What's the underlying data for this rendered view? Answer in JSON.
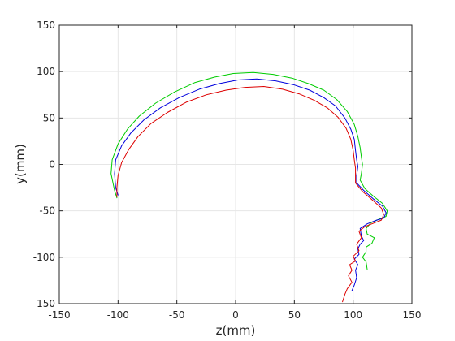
{
  "chart_data": {
    "type": "line",
    "title": "",
    "xlabel": "z(mm)",
    "ylabel": "y(mm)",
    "xlim": [
      -150,
      150
    ],
    "ylim": [
      -150,
      150
    ],
    "xticks": [
      -150,
      -100,
      -50,
      0,
      50,
      100,
      150
    ],
    "yticks": [
      -150,
      -100,
      -50,
      0,
      50,
      100,
      150
    ],
    "grid": true,
    "box": true,
    "colors": {
      "axis": "#262626",
      "grid": "#e6e6e6",
      "background": "#ffffff"
    },
    "series": [
      {
        "color": "#00cc00",
        "points": [
          [
            -101,
            -36
          ],
          [
            -103,
            -28
          ],
          [
            -106,
            -10
          ],
          [
            -105,
            5
          ],
          [
            -100,
            22
          ],
          [
            -92,
            38
          ],
          [
            -82,
            52
          ],
          [
            -68,
            66
          ],
          [
            -52,
            78
          ],
          [
            -35,
            88
          ],
          [
            -18,
            94
          ],
          [
            -2,
            98
          ],
          [
            15,
            99
          ],
          [
            32,
            97
          ],
          [
            48,
            93
          ],
          [
            62,
            87
          ],
          [
            75,
            80
          ],
          [
            86,
            70
          ],
          [
            95,
            57
          ],
          [
            101,
            43
          ],
          [
            104,
            30
          ],
          [
            106,
            18
          ],
          [
            107,
            8
          ],
          [
            108,
            0
          ],
          [
            107,
            -10
          ],
          [
            106,
            -17
          ],
          [
            110,
            -26
          ],
          [
            117,
            -34
          ],
          [
            125,
            -42
          ],
          [
            129,
            -50
          ],
          [
            128,
            -56
          ],
          [
            122,
            -59
          ],
          [
            115,
            -63
          ],
          [
            111,
            -69
          ],
          [
            112,
            -75
          ],
          [
            118,
            -79
          ],
          [
            116,
            -85
          ],
          [
            111,
            -89
          ],
          [
            111,
            -94
          ],
          [
            108,
            -100
          ],
          [
            111,
            -105
          ],
          [
            112,
            -113
          ]
        ]
      },
      {
        "color": "#0000dd",
        "points": [
          [
            -100,
            -33
          ],
          [
            -102,
            -25
          ],
          [
            -103,
            -10
          ],
          [
            -102,
            5
          ],
          [
            -97,
            20
          ],
          [
            -89,
            34
          ],
          [
            -78,
            48
          ],
          [
            -64,
            61
          ],
          [
            -48,
            72
          ],
          [
            -31,
            81
          ],
          [
            -14,
            87
          ],
          [
            2,
            91
          ],
          [
            18,
            92
          ],
          [
            34,
            90
          ],
          [
            49,
            86
          ],
          [
            63,
            80
          ],
          [
            75,
            72
          ],
          [
            85,
            63
          ],
          [
            93,
            50
          ],
          [
            98,
            38
          ],
          [
            101,
            27
          ],
          [
            102,
            15
          ],
          [
            103,
            5
          ],
          [
            104,
            -2
          ],
          [
            103,
            -12
          ],
          [
            103,
            -20
          ],
          [
            109,
            -28
          ],
          [
            117,
            -37
          ],
          [
            125,
            -45
          ],
          [
            128,
            -52
          ],
          [
            126,
            -58
          ],
          [
            120,
            -60
          ],
          [
            112,
            -64
          ],
          [
            106,
            -69
          ],
          [
            107,
            -77
          ],
          [
            109,
            -82
          ],
          [
            106,
            -86
          ],
          [
            104,
            -91
          ],
          [
            105,
            -97
          ],
          [
            101,
            -102
          ],
          [
            104,
            -108
          ],
          [
            102,
            -114
          ],
          [
            103,
            -122
          ],
          [
            101,
            -130
          ],
          [
            99,
            -136
          ]
        ]
      },
      {
        "color": "#dd0000",
        "points": [
          [
            -101,
            -35
          ],
          [
            -101,
            -25
          ],
          [
            -100,
            -12
          ],
          [
            -97,
            2
          ],
          [
            -91,
            16
          ],
          [
            -83,
            30
          ],
          [
            -72,
            44
          ],
          [
            -58,
            56
          ],
          [
            -42,
            67
          ],
          [
            -25,
            75
          ],
          [
            -8,
            80
          ],
          [
            8,
            83
          ],
          [
            24,
            84
          ],
          [
            40,
            81
          ],
          [
            54,
            76
          ],
          [
            67,
            69
          ],
          [
            78,
            61
          ],
          [
            87,
            51
          ],
          [
            94,
            39
          ],
          [
            98,
            27
          ],
          [
            100,
            15
          ],
          [
            101,
            5
          ],
          [
            102,
            -4
          ],
          [
            102,
            -12
          ],
          [
            102,
            -20
          ],
          [
            108,
            -29
          ],
          [
            117,
            -39
          ],
          [
            124,
            -47
          ],
          [
            126,
            -54
          ],
          [
            124,
            -60
          ],
          [
            116,
            -64
          ],
          [
            110,
            -67
          ],
          [
            105,
            -72
          ],
          [
            107,
            -79
          ],
          [
            103,
            -86
          ],
          [
            105,
            -93
          ],
          [
            100,
            -99
          ],
          [
            102,
            -104
          ],
          [
            97,
            -108
          ],
          [
            99,
            -114
          ],
          [
            96,
            -120
          ],
          [
            99,
            -127
          ],
          [
            95,
            -134
          ],
          [
            93,
            -140
          ],
          [
            91,
            -148
          ]
        ]
      }
    ]
  }
}
